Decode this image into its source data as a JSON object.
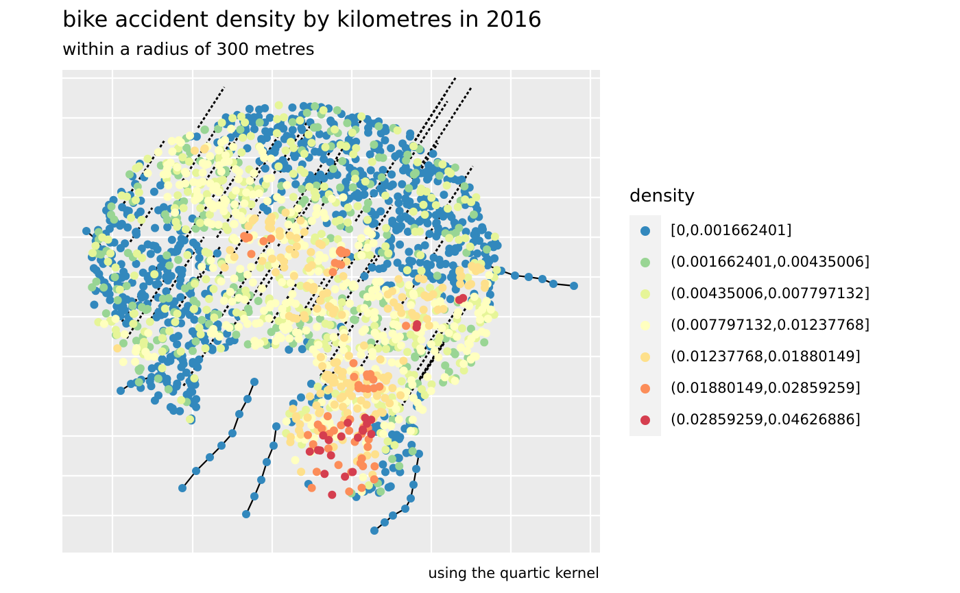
{
  "title": "bike accident density by kilometres in 2016",
  "subtitle": "within a radius of 300 metres",
  "caption": "using the quartic kernel",
  "legend": {
    "title": "density",
    "items": [
      {
        "label": "[0,0.001662401]",
        "color": "#3288bd"
      },
      {
        "label": "(0.001662401,0.00435006]",
        "color": "#99d594"
      },
      {
        "label": "(0.00435006,0.007797132]",
        "color": "#e6f598"
      },
      {
        "label": "(0.007797132,0.01237768]",
        "color": "#ffffbf"
      },
      {
        "label": "(0.01237768,0.01880149]",
        "color": "#fee08b"
      },
      {
        "label": "(0.01880149,0.02859259]",
        "color": "#fc8d59"
      },
      {
        "label": "(0.02859259,0.04626886]",
        "color": "#d53e4f"
      }
    ]
  },
  "chart_data": {
    "type": "scatter",
    "title": "bike accident density by kilometres in 2016",
    "subtitle": "within a radius of 300 metres",
    "caption": "using the quartic kernel",
    "legend_title": "density",
    "legend_position": "right",
    "grid": true,
    "axes": "hidden",
    "classes": [
      "[0,0.001662401]",
      "(0.001662401,0.00435006]",
      "(0.00435006,0.007797132]",
      "(0.007797132,0.01237768]",
      "(0.01237768,0.01880149]",
      "(0.01880149,0.02859259]",
      "(0.02859259,0.04626886]"
    ]
  }
}
